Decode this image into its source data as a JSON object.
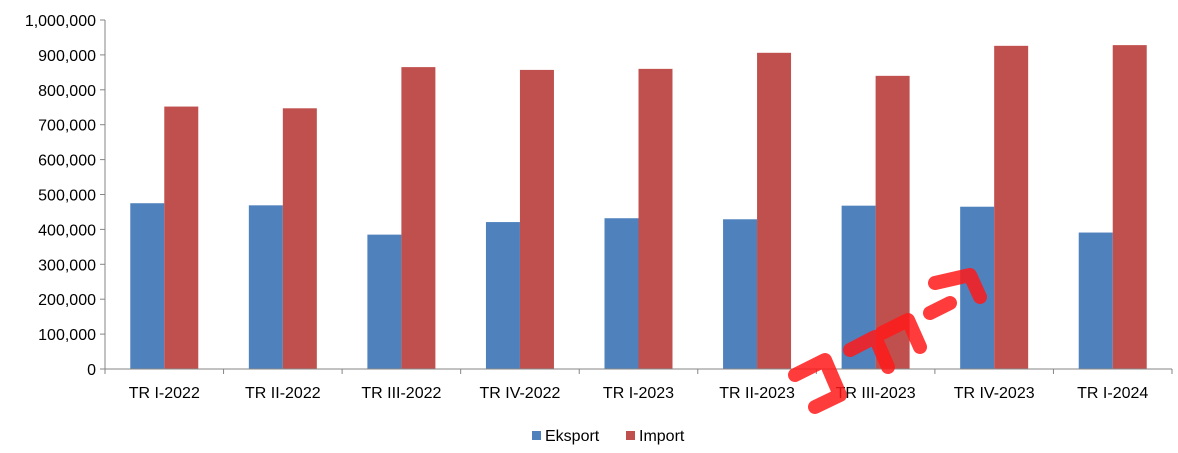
{
  "chart_data": {
    "type": "bar",
    "categories": [
      "TR I-2022",
      "TR II-2022",
      "TR III-2022",
      "TR IV-2022",
      "TR I-2023",
      "TR II-2023",
      "TR III-2023",
      "TR IV-2023",
      "TR I-2024"
    ],
    "series": [
      {
        "name": "Eksport",
        "color": "#4F81BD",
        "values": [
          475000,
          469000,
          385000,
          421000,
          432000,
          429000,
          468000,
          465000,
          391000
        ]
      },
      {
        "name": "Import",
        "color": "#C0504D",
        "values": [
          752000,
          747000,
          865000,
          857000,
          860000,
          906000,
          840000,
          926000,
          928000
        ]
      }
    ],
    "ylim": [
      0,
      1000000
    ],
    "yticks": [
      "0",
      "100,000",
      "200,000",
      "300,000",
      "400,000",
      "500,000",
      "600,000",
      "700,000",
      "800,000",
      "900,000",
      "1,000,000"
    ],
    "grid": false,
    "legend_position": "bottom-center"
  },
  "watermark_icon": "red-diagonal-stamp"
}
